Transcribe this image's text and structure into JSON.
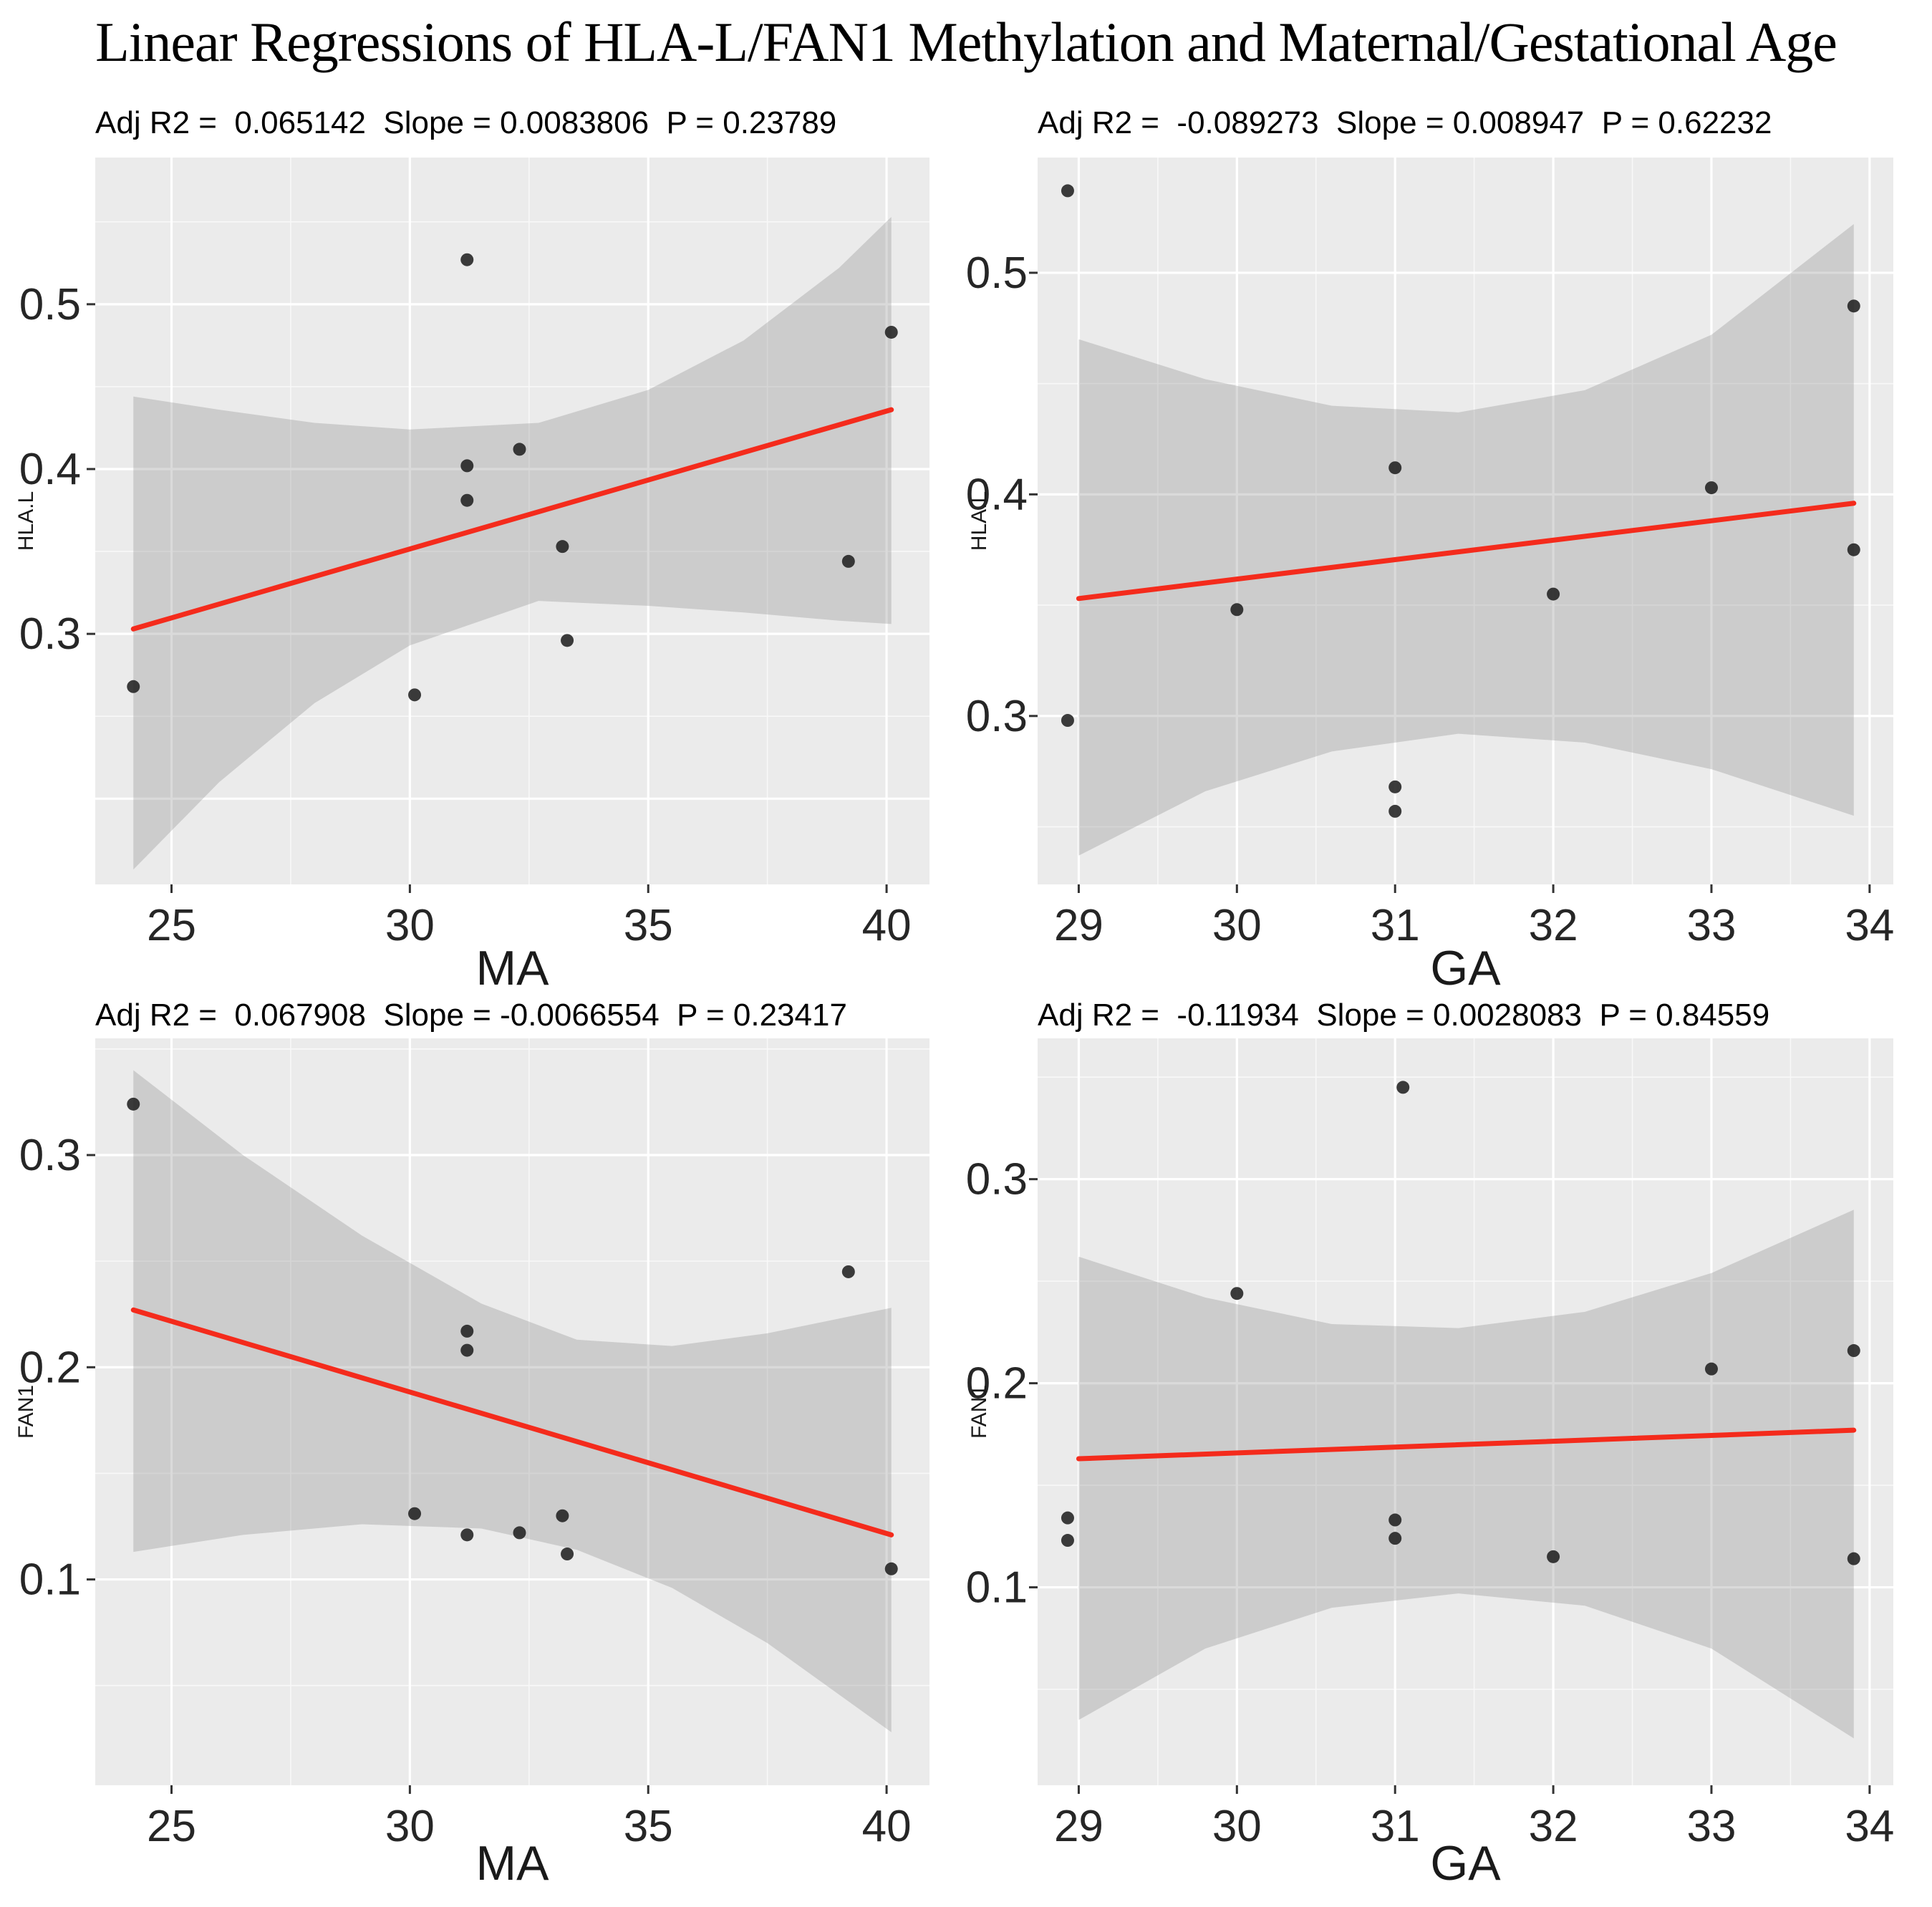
{
  "title": "Linear Regressions of HLA-L/FAN1 Methylation and Maternal/Gestational Age",
  "chart_data": {
    "type": "scatter",
    "layout": "2x2 grid, ggplot-style gray panels, white gridlines, red linear fit with gray confidence band, no legend",
    "colors": {
      "panel_background": "#EBEBEB",
      "gridline": "#FFFFFF",
      "confidence_band": "#8F8F8F",
      "regression_line": "#F42B1C",
      "point": "#1F1F1F",
      "tick_text": "#262626"
    },
    "charts": [
      {
        "subtitle": "Adj R2 =  0.065142  Slope = 0.0083806  P = 0.23789",
        "stats": {
          "adj_r2": 0.065142,
          "slope": 0.0083806,
          "p": 0.23789
        },
        "xlabel": "MA",
        "ylabel": "HLA.L",
        "xlim": [
          23.4,
          40.9
        ],
        "ylim": [
          0.148,
          0.589
        ],
        "x_ticks": [
          25,
          30,
          35,
          40
        ],
        "x_minor": [
          27.5,
          32.5,
          37.5
        ],
        "y_ticks": [
          0.3,
          0.4,
          0.5
        ],
        "y_major_extra": [
          0.2
        ],
        "y_minor": [
          0.25,
          0.35,
          0.45,
          0.55
        ],
        "points": [
          [
            24.2,
            0.268
          ],
          [
            30.1,
            0.263
          ],
          [
            31.2,
            0.527
          ],
          [
            31.2,
            0.402
          ],
          [
            31.2,
            0.381
          ],
          [
            32.3,
            0.412
          ],
          [
            33.2,
            0.353
          ],
          [
            33.3,
            0.296
          ],
          [
            39.2,
            0.344
          ],
          [
            40.1,
            0.483
          ]
        ],
        "fit": {
          "x": [
            24.2,
            40.1
          ],
          "y": [
            0.303,
            0.436
          ]
        },
        "band": {
          "x": [
            24.2,
            26.0,
            28.0,
            30.0,
            32.7,
            35.0,
            37.0,
            39.0,
            40.1
          ],
          "lo": [
            0.157,
            0.21,
            0.258,
            0.293,
            0.32,
            0.317,
            0.313,
            0.308,
            0.306
          ],
          "hi": [
            0.444,
            0.436,
            0.428,
            0.424,
            0.428,
            0.448,
            0.478,
            0.522,
            0.553
          ]
        }
      },
      {
        "subtitle": "Adj R2 =  -0.089273  Slope = 0.008947  P = 0.62232",
        "stats": {
          "adj_r2": -0.089273,
          "slope": 0.008947,
          "p": 0.62232
        },
        "xlabel": "GA",
        "ylabel": "HLA.L",
        "xlim": [
          28.74,
          34.15
        ],
        "ylim": [
          0.224,
          0.552
        ],
        "x_ticks": [
          29,
          30,
          31,
          32,
          33,
          34
        ],
        "x_minor": [
          29.5,
          30.5,
          31.5,
          32.5,
          33.5
        ],
        "y_ticks": [
          0.3,
          0.4,
          0.5
        ],
        "y_major_extra": [],
        "y_minor": [
          0.25,
          0.35,
          0.45
        ],
        "points": [
          [
            28.93,
            0.537
          ],
          [
            28.93,
            0.298
          ],
          [
            30,
            0.348
          ],
          [
            31,
            0.412
          ],
          [
            31,
            0.268
          ],
          [
            31,
            0.257
          ],
          [
            32,
            0.355
          ],
          [
            33,
            0.403
          ],
          [
            33.9,
            0.485
          ],
          [
            33.9,
            0.375
          ]
        ],
        "fit": {
          "x": [
            29,
            33.9
          ],
          "y": [
            0.353,
            0.396
          ]
        },
        "band": {
          "x": [
            29.0,
            29.8,
            30.6,
            31.4,
            32.2,
            33.0,
            33.9
          ],
          "lo": [
            0.237,
            0.266,
            0.284,
            0.292,
            0.288,
            0.276,
            0.255
          ],
          "hi": [
            0.47,
            0.452,
            0.44,
            0.437,
            0.447,
            0.472,
            0.522
          ]
        }
      },
      {
        "subtitle": "Adj R2 =  0.067908  Slope = -0.0066554  P = 0.23417",
        "stats": {
          "adj_r2": 0.067908,
          "slope": -0.0066554,
          "p": 0.23417
        },
        "xlabel": "MA",
        "ylabel": "FAN1",
        "xlim": [
          23.4,
          40.9
        ],
        "ylim": [
          0.003,
          0.355
        ],
        "x_ticks": [
          25,
          30,
          35,
          40
        ],
        "x_minor": [
          27.5,
          32.5,
          37.5
        ],
        "y_ticks": [
          0.1,
          0.2,
          0.3
        ],
        "y_major_extra": [],
        "y_minor": [
          0.05,
          0.15,
          0.25,
          0.35
        ],
        "points": [
          [
            24.2,
            0.324
          ],
          [
            30.1,
            0.131
          ],
          [
            31.2,
            0.217
          ],
          [
            31.2,
            0.208
          ],
          [
            31.2,
            0.121
          ],
          [
            32.3,
            0.122
          ],
          [
            33.2,
            0.13
          ],
          [
            33.3,
            0.112
          ],
          [
            39.2,
            0.245
          ],
          [
            40.1,
            0.105
          ]
        ],
        "fit": {
          "x": [
            24.2,
            40.1
          ],
          "y": [
            0.227,
            0.121
          ]
        },
        "band": {
          "x": [
            24.2,
            26.5,
            29.0,
            31.5,
            33.5,
            35.5,
            37.5,
            40.1
          ],
          "lo": [
            0.113,
            0.121,
            0.126,
            0.124,
            0.114,
            0.096,
            0.07,
            0.028
          ],
          "hi": [
            0.34,
            0.3,
            0.262,
            0.23,
            0.213,
            0.21,
            0.216,
            0.228
          ]
        }
      },
      {
        "subtitle": "Adj R2 =  -0.11934  Slope = 0.0028083  P = 0.84559",
        "stats": {
          "adj_r2": -0.11934,
          "slope": 0.0028083,
          "p": 0.84559
        },
        "xlabel": "GA",
        "ylabel": "FAN1",
        "xlim": [
          28.74,
          34.15
        ],
        "ylim": [
          0.003,
          0.369
        ],
        "x_ticks": [
          29,
          30,
          31,
          32,
          33,
          34
        ],
        "x_minor": [
          29.5,
          30.5,
          31.5,
          32.5,
          33.5
        ],
        "y_ticks": [
          0.1,
          0.2,
          0.3
        ],
        "y_major_extra": [],
        "y_minor": [
          0.05,
          0.15,
          0.25,
          0.35
        ],
        "points": [
          [
            31.05,
            0.345
          ],
          [
            30,
            0.244
          ],
          [
            33.9,
            0.216
          ],
          [
            33,
            0.207
          ],
          [
            28.93,
            0.134
          ],
          [
            28.93,
            0.123
          ],
          [
            31,
            0.133
          ],
          [
            31,
            0.124
          ],
          [
            32,
            0.115
          ],
          [
            33.9,
            0.114
          ]
        ],
        "fit": {
          "x": [
            29,
            33.9
          ],
          "y": [
            0.163,
            0.177
          ]
        },
        "band": {
          "x": [
            29.0,
            29.8,
            30.6,
            31.4,
            32.2,
            33.0,
            33.9
          ],
          "lo": [
            0.035,
            0.07,
            0.09,
            0.097,
            0.091,
            0.07,
            0.026
          ],
          "hi": [
            0.262,
            0.242,
            0.229,
            0.227,
            0.235,
            0.254,
            0.285
          ]
        }
      }
    ]
  }
}
